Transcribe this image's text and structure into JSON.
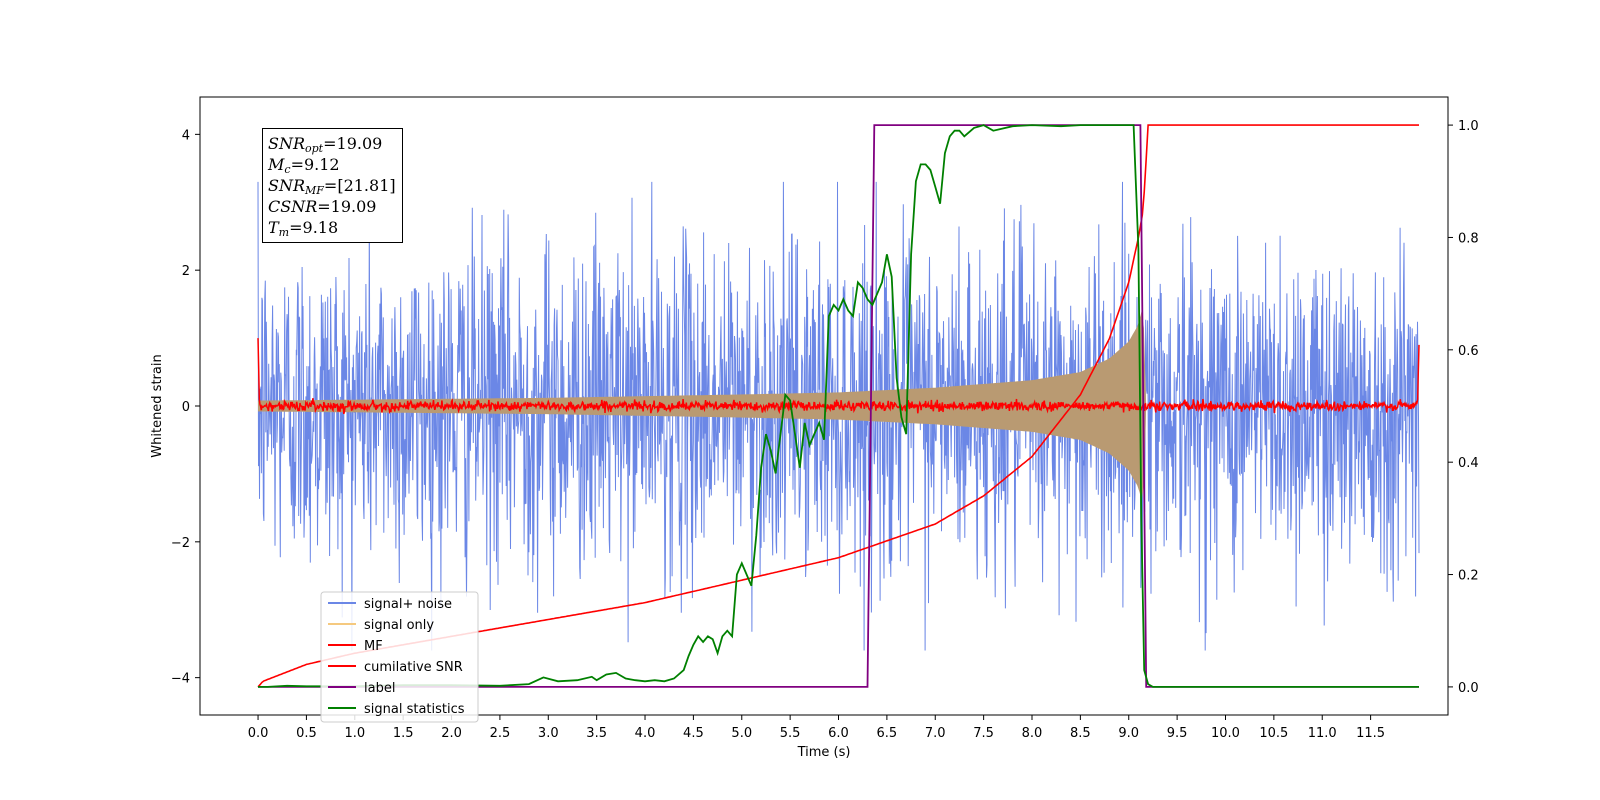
{
  "chart_data": {
    "type": "line",
    "title": "",
    "xlabel": "Time (s)",
    "ylabel": "Whitened strain",
    "y2label": "",
    "xlim": [
      -0.6,
      12.3
    ],
    "ylim": [
      -4.55,
      4.55
    ],
    "y2lim": [
      -0.05,
      1.05
    ],
    "x_ticks": [
      "0.0",
      "0.5",
      "1.0",
      "1.5",
      "2.0",
      "2.5",
      "3.0",
      "3.5",
      "4.0",
      "4.5",
      "5.0",
      "5.5",
      "6.0",
      "6.5",
      "7.0",
      "7.5",
      "8.0",
      "8.5",
      "9.0",
      "9.5",
      "10.0",
      "10.5",
      "11.0",
      "11.5"
    ],
    "y_ticks": [
      "4",
      "2",
      "0",
      "−2",
      "−4"
    ],
    "y2_ticks": [
      "1.0",
      "0.8",
      "0.6",
      "0.4",
      "0.2",
      "0.0"
    ],
    "grid": false,
    "legend_position": "lower-left",
    "annotations": [
      {
        "sym": "SNR",
        "sub": "opt",
        "value": "=19.09"
      },
      {
        "sym": "M",
        "sub": "c",
        "value": "=9.12"
      },
      {
        "sym": "SNR",
        "sub": "MF",
        "value": "=[21.81]"
      },
      {
        "sym": "CSNR",
        "sub": "",
        "value": "=19.09"
      },
      {
        "sym": "T",
        "sub": "m",
        "value": "=9.18"
      }
    ],
    "series": [
      {
        "name": "signal+ noise",
        "axis": "left",
        "color": "#6b87e6",
        "style": "noise-band",
        "x_range": [
          0,
          12.0
        ],
        "approx_amplitude": 2.2
      },
      {
        "name": "signal only",
        "axis": "left",
        "color": "#f5c97f",
        "style": "chirp-envelope",
        "envelope": {
          "x": [
            0,
            3,
            5,
            6,
            7,
            8,
            8.5,
            8.8,
            9.0,
            9.1,
            9.15,
            9.18
          ],
          "y": [
            0.08,
            0.12,
            0.17,
            0.2,
            0.27,
            0.38,
            0.5,
            0.7,
            0.95,
            1.2,
            1.5,
            0
          ]
        }
      },
      {
        "name": "MF",
        "axis": "left",
        "color": "#ff0000",
        "style": "noise-line",
        "x_range": [
          0,
          12.0
        ],
        "approx_amplitude": 0.08
      },
      {
        "name": "cumilative SNR",
        "axis": "right",
        "color": "#ff0000",
        "x": [
          0,
          0.05,
          0.5,
          1,
          2,
          3,
          4,
          5,
          6,
          6.5,
          7,
          7.5,
          8,
          8.5,
          8.8,
          9.0,
          9.1,
          9.15,
          9.2,
          12.0
        ],
        "y": [
          0.0,
          0.01,
          0.04,
          0.06,
          0.09,
          0.12,
          0.15,
          0.19,
          0.23,
          0.26,
          0.29,
          0.34,
          0.41,
          0.52,
          0.62,
          0.72,
          0.8,
          0.85,
          1.0,
          1.0
        ]
      },
      {
        "name": "label",
        "axis": "right",
        "color": "#800080",
        "x": [
          0,
          6.3,
          6.37,
          9.12,
          9.18,
          12.0
        ],
        "y": [
          0,
          0,
          1,
          1,
          0,
          0
        ]
      },
      {
        "name": "signal statistics",
        "axis": "right",
        "color": "#008000",
        "x": [
          0,
          0.1,
          0.3,
          0.5,
          1,
          1.5,
          2,
          2.5,
          2.8,
          2.95,
          3.1,
          3.3,
          3.45,
          3.5,
          3.6,
          3.7,
          3.8,
          3.9,
          4.0,
          4.1,
          4.2,
          4.3,
          4.4,
          4.45,
          4.5,
          4.55,
          4.6,
          4.65,
          4.7,
          4.75,
          4.8,
          4.85,
          4.9,
          4.95,
          5.0,
          5.05,
          5.1,
          5.15,
          5.2,
          5.25,
          5.3,
          5.35,
          5.4,
          5.45,
          5.5,
          5.55,
          5.6,
          5.65,
          5.7,
          5.75,
          5.8,
          5.85,
          5.9,
          5.95,
          6.0,
          6.05,
          6.1,
          6.15,
          6.2,
          6.25,
          6.3,
          6.35,
          6.4,
          6.45,
          6.5,
          6.55,
          6.6,
          6.65,
          6.7,
          6.75,
          6.8,
          6.85,
          6.9,
          6.95,
          7.0,
          7.05,
          7.1,
          7.15,
          7.2,
          7.25,
          7.3,
          7.4,
          7.5,
          7.6,
          7.8,
          8.0,
          8.3,
          8.5,
          8.7,
          8.9,
          9.05,
          9.1,
          9.13,
          9.16,
          9.2,
          9.25,
          9.3,
          9.5,
          10,
          11,
          12
        ],
        "y": [
          0.0,
          0.0,
          0.002,
          0.001,
          0.001,
          0.003,
          0.003,
          0.002,
          0.005,
          0.017,
          0.01,
          0.012,
          0.018,
          0.012,
          0.022,
          0.025,
          0.015,
          0.012,
          0.01,
          0.012,
          0.01,
          0.015,
          0.03,
          0.055,
          0.075,
          0.09,
          0.08,
          0.09,
          0.085,
          0.06,
          0.09,
          0.1,
          0.09,
          0.2,
          0.22,
          0.2,
          0.18,
          0.27,
          0.39,
          0.45,
          0.42,
          0.38,
          0.45,
          0.52,
          0.51,
          0.45,
          0.39,
          0.47,
          0.43,
          0.45,
          0.47,
          0.44,
          0.66,
          0.68,
          0.67,
          0.69,
          0.67,
          0.66,
          0.72,
          0.71,
          0.69,
          0.68,
          0.7,
          0.72,
          0.77,
          0.73,
          0.55,
          0.48,
          0.45,
          0.77,
          0.9,
          0.93,
          0.93,
          0.92,
          0.89,
          0.86,
          0.95,
          0.98,
          0.99,
          0.99,
          0.98,
          0.995,
          1.0,
          0.99,
          0.998,
          1.0,
          0.998,
          1.0,
          1.0,
          1.0,
          1.0,
          0.78,
          0.3,
          0.03,
          0.005,
          0.0,
          0.0,
          0.0,
          0.0,
          0.0,
          0.0
        ]
      }
    ]
  },
  "colors": {
    "noise": "#6b87e6",
    "signal_only": "#f5c97f",
    "signal_overlap": "#b99a72",
    "mf": "#ff0000",
    "cumulative_snr": "#ff0000",
    "label": "#800080",
    "signal_statistics": "#008000"
  }
}
